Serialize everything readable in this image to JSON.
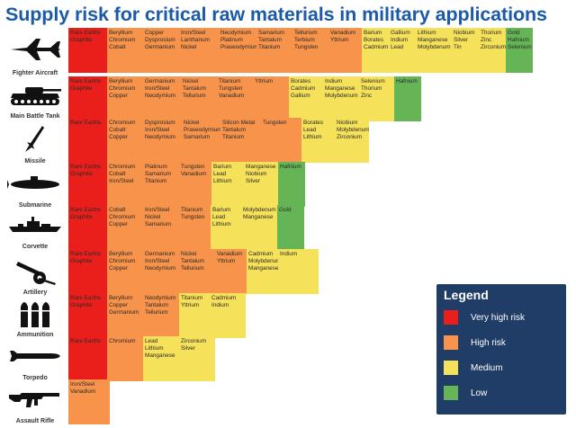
{
  "title": "Supply risk for critical raw materials in military applications",
  "colors": {
    "very_high": "#ea1f1b",
    "high": "#f7934a",
    "medium": "#f6e15a",
    "low": "#65b556"
  },
  "legend": {
    "title": "Legend",
    "items": [
      {
        "label": "Very high risk",
        "color": "#ea1f1b"
      },
      {
        "label": "High risk",
        "color": "#f7934a"
      },
      {
        "label": "Medium",
        "color": "#f6e15a"
      },
      {
        "label": "Low",
        "color": "#65b556"
      }
    ]
  },
  "chart_data": {
    "type": "table",
    "title": "Supply risk for critical raw materials in military applications",
    "risk_levels": [
      "Very high risk",
      "High risk",
      "Medium",
      "Low"
    ],
    "platforms": [
      {
        "name": "Fighter Aircraft",
        "icon": "fighter-jet-icon",
        "cells": [
          {
            "risk": "very_high",
            "materials": [
              "Rare Earths",
              "Graphite"
            ]
          },
          {
            "risk": "high",
            "materials": [
              "Beryllium",
              "Chromium",
              "Cobalt"
            ]
          },
          {
            "risk": "high",
            "materials": [
              "Copper",
              "Dysprosium",
              "Germanium"
            ]
          },
          {
            "risk": "high",
            "materials": [
              "Iron/Steel",
              "Lanthanum",
              "Nickel"
            ]
          },
          {
            "risk": "high",
            "materials": [
              "Neodymium",
              "Platinum",
              "Praseodymium"
            ]
          },
          {
            "risk": "high",
            "materials": [
              "Samarium",
              "Tantalum",
              "Titanium"
            ]
          },
          {
            "risk": "high",
            "materials": [
              "Tellurium",
              "Terbium",
              "Tungsten"
            ]
          },
          {
            "risk": "high",
            "materials": [
              "Vanadium",
              "Yttrium"
            ]
          },
          {
            "risk": "medium",
            "materials": [
              "Barium",
              "Borates",
              "Cadmium"
            ]
          },
          {
            "risk": "medium",
            "materials": [
              "Gallium",
              "Indium",
              "Lead"
            ]
          },
          {
            "risk": "medium",
            "materials": [
              "Lithium",
              "Manganese",
              "Molybdenum"
            ]
          },
          {
            "risk": "medium",
            "materials": [
              "Niobium",
              "Silver",
              "Tin"
            ]
          },
          {
            "risk": "medium",
            "materials": [
              "Thorium",
              "Zinc",
              "Zirconium"
            ]
          },
          {
            "risk": "low",
            "materials": [
              "Gold",
              "Hafnium",
              "Selenium"
            ]
          }
        ]
      },
      {
        "name": "Main Battle Tank",
        "icon": "tank-icon",
        "cells": [
          {
            "risk": "very_high",
            "materials": [
              "Rare Earths",
              "Graphite"
            ]
          },
          {
            "risk": "high",
            "materials": [
              "Beryllium",
              "Chromium",
              "Copper"
            ]
          },
          {
            "risk": "high",
            "materials": [
              "Germanium",
              "Iron/Steel",
              "Neodymium"
            ]
          },
          {
            "risk": "high",
            "materials": [
              "Nickel",
              "Tantalum",
              "Tellurium"
            ]
          },
          {
            "risk": "high",
            "materials": [
              "Titanium",
              "Tungsten",
              "Vanadium"
            ]
          },
          {
            "risk": "high",
            "materials": [
              "Yttrium"
            ]
          },
          {
            "risk": "medium",
            "materials": [
              "Borates",
              "Cadmium",
              "Gallium"
            ]
          },
          {
            "risk": "medium",
            "materials": [
              "Indium",
              "Manganese",
              "Molybdenum"
            ]
          },
          {
            "risk": "medium",
            "materials": [
              "Selenium",
              "Thorium",
              "Zinc"
            ]
          },
          {
            "risk": "low",
            "materials": [
              "Hafnium"
            ]
          }
        ]
      },
      {
        "name": "Missile",
        "icon": "missile-icon",
        "cells": [
          {
            "risk": "very_high",
            "materials": [
              "Rare Earths"
            ]
          },
          {
            "risk": "high",
            "materials": [
              "Chromium",
              "Cobalt",
              "Copper"
            ]
          },
          {
            "risk": "high",
            "materials": [
              "Dysprosium",
              "Iron/Steel",
              "Neodymium"
            ]
          },
          {
            "risk": "high",
            "materials": [
              "Nickel",
              "Praseodymium",
              "Samarium"
            ]
          },
          {
            "risk": "high",
            "materials": [
              "Silicon Metal",
              "Tantalum",
              "Titanium"
            ]
          },
          {
            "risk": "high",
            "materials": [
              "Tungsten"
            ]
          },
          {
            "risk": "medium",
            "materials": [
              "Borates",
              "Lead",
              "Lithium"
            ]
          },
          {
            "risk": "medium",
            "materials": [
              "Niobium",
              "Molybdenum",
              "Zirconium"
            ]
          }
        ]
      },
      {
        "name": "Submarine",
        "icon": "submarine-icon",
        "cells": [
          {
            "risk": "very_high",
            "materials": [
              "Rare Earths",
              "Graphite"
            ]
          },
          {
            "risk": "high",
            "materials": [
              "Chromium",
              "Cobalt",
              "Iron/Steel"
            ]
          },
          {
            "risk": "high",
            "materials": [
              "Platinum",
              "Samarium",
              "Titanium"
            ]
          },
          {
            "risk": "high",
            "materials": [
              "Tungsten",
              "Vanadium"
            ]
          },
          {
            "risk": "medium",
            "materials": [
              "Barium",
              "Lead",
              "Lithium"
            ]
          },
          {
            "risk": "medium",
            "materials": [
              "Manganese",
              "Niobium",
              "Silver"
            ]
          },
          {
            "risk": "low",
            "materials": [
              "Hafnium"
            ]
          }
        ]
      },
      {
        "name": "Corvette",
        "icon": "corvette-icon",
        "cells": [
          {
            "risk": "very_high",
            "materials": [
              "Rare Earths",
              "Graphite"
            ]
          },
          {
            "risk": "high",
            "materials": [
              "Cobalt",
              "Chromium",
              "Copper"
            ]
          },
          {
            "risk": "high",
            "materials": [
              "Iron/Steel",
              "Nickel",
              "Samarium"
            ]
          },
          {
            "risk": "high",
            "materials": [
              "Titanium",
              "Tungsten"
            ]
          },
          {
            "risk": "medium",
            "materials": [
              "Barium",
              "Lead",
              "Lithium"
            ]
          },
          {
            "risk": "medium",
            "materials": [
              "Molybdenum",
              "Manganese"
            ]
          },
          {
            "risk": "low",
            "materials": [
              "Gold"
            ]
          }
        ]
      },
      {
        "name": "Artillery",
        "icon": "artillery-icon",
        "cells": [
          {
            "risk": "very_high",
            "materials": [
              "Rare Earths",
              "Graphite"
            ]
          },
          {
            "risk": "high",
            "materials": [
              "Beryllium",
              "Chromium",
              "Copper"
            ]
          },
          {
            "risk": "high",
            "materials": [
              "Germanium",
              "Iron/Steel",
              "Neodymium"
            ]
          },
          {
            "risk": "high",
            "materials": [
              "Nickel",
              "Tantalum",
              "Tellurium"
            ]
          },
          {
            "risk": "high",
            "materials": [
              "Vanadium",
              "Yttrium"
            ]
          },
          {
            "risk": "medium",
            "materials": [
              "Cadmium",
              "Molybdenum",
              "Manganese"
            ]
          },
          {
            "risk": "medium",
            "materials": [
              "Indium"
            ]
          }
        ]
      },
      {
        "name": "Ammunition",
        "icon": "ammunition-icon",
        "cells": [
          {
            "risk": "very_high",
            "materials": [
              "Rare Earths",
              "Graphite"
            ]
          },
          {
            "risk": "high",
            "materials": [
              "Beryllium",
              "Copper",
              "Germanium"
            ]
          },
          {
            "risk": "high",
            "materials": [
              "Neodymium",
              "Tantalum",
              "Tellurium"
            ]
          },
          {
            "risk": "medium",
            "materials": [
              "Titanium",
              "Yttrium"
            ]
          },
          {
            "risk": "medium",
            "materials": [
              "Cadmium",
              "Indium"
            ]
          }
        ]
      },
      {
        "name": "Torpedo",
        "icon": "torpedo-icon",
        "cells": [
          {
            "risk": "very_high",
            "materials": [
              "Rare Earths"
            ]
          },
          {
            "risk": "high",
            "materials": [
              "Chromium"
            ]
          },
          {
            "risk": "medium",
            "materials": [
              "Lead",
              "Lithium",
              "Manganese"
            ]
          },
          {
            "risk": "medium",
            "materials": [
              "Zirconium",
              "Silver"
            ]
          }
        ]
      },
      {
        "name": "Assault Rifle",
        "icon": "assault-rifle-icon",
        "cells": [
          {
            "risk": "high",
            "materials": [
              "Iron/Steel",
              "Vanadium"
            ]
          }
        ]
      }
    ]
  }
}
